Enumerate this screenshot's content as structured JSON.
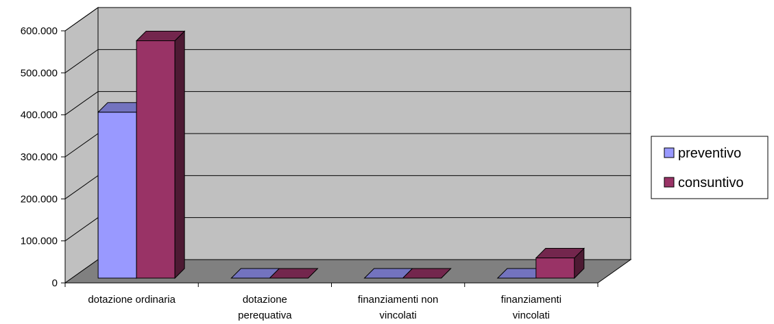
{
  "chart_data": {
    "type": "bar",
    "title": "",
    "xlabel": "",
    "ylabel": "",
    "ylim": [
      0,
      600000
    ],
    "y_ticks": [
      0,
      100000,
      200000,
      300000,
      400000,
      500000,
      600000
    ],
    "y_tick_labels": [
      "0",
      "100.000",
      "200.000",
      "300.000",
      "400.000",
      "500.000",
      "600.000"
    ],
    "categories": [
      [
        "dotazione ordinaria"
      ],
      [
        "dotazione",
        "perequativa"
      ],
      [
        "finanziamenti non",
        "vincolati"
      ],
      [
        "finanziamenti",
        "vincolati"
      ]
    ],
    "series": [
      {
        "name": "preventivo",
        "values": [
          395000,
          0,
          0,
          0
        ],
        "color": "#9999ff"
      },
      {
        "name": "consuntivo",
        "values": [
          565000,
          0,
          0,
          48000
        ],
        "color": "#993366"
      }
    ],
    "grid": true,
    "legend_position": "right",
    "style": "3d-clustered-column",
    "wall_color": "#c0c0c0",
    "floor_color": "#808080"
  }
}
